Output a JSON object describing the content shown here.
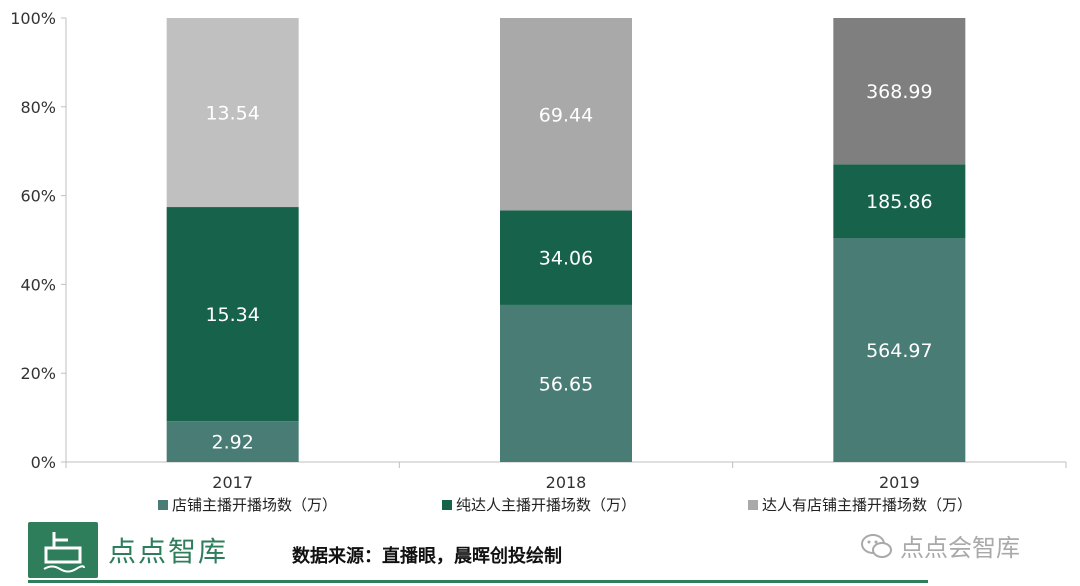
{
  "chart_data": {
    "type": "bar",
    "stacked": true,
    "normalized": true,
    "categories": [
      "2017",
      "2018",
      "2019"
    ],
    "series": [
      {
        "name": "店铺主播开播场数（万）",
        "values": [
          2.92,
          56.65,
          564.97
        ],
        "color": "#4a7c76"
      },
      {
        "name": "纯达人主播开播场数（万）",
        "values": [
          15.34,
          34.06,
          185.86
        ],
        "color": "#17624a"
      },
      {
        "name": "达人有店铺主播开播场数（万）",
        "values": [
          13.54,
          69.44,
          368.99
        ],
        "colors": [
          "#c0c0c0",
          "#a9a9a9",
          "#7f7f7f"
        ],
        "legend_color": "#a9a9a9"
      }
    ],
    "yticks": [
      "0%",
      "20%",
      "40%",
      "60%",
      "80%",
      "100%"
    ],
    "ylim": [
      0,
      100
    ],
    "legend_position": "bottom"
  },
  "footer": {
    "brand_name": "点点智库",
    "source": "数据来源：直播眼，晨晖创投绘制",
    "wechat_label": "点点会智库"
  }
}
